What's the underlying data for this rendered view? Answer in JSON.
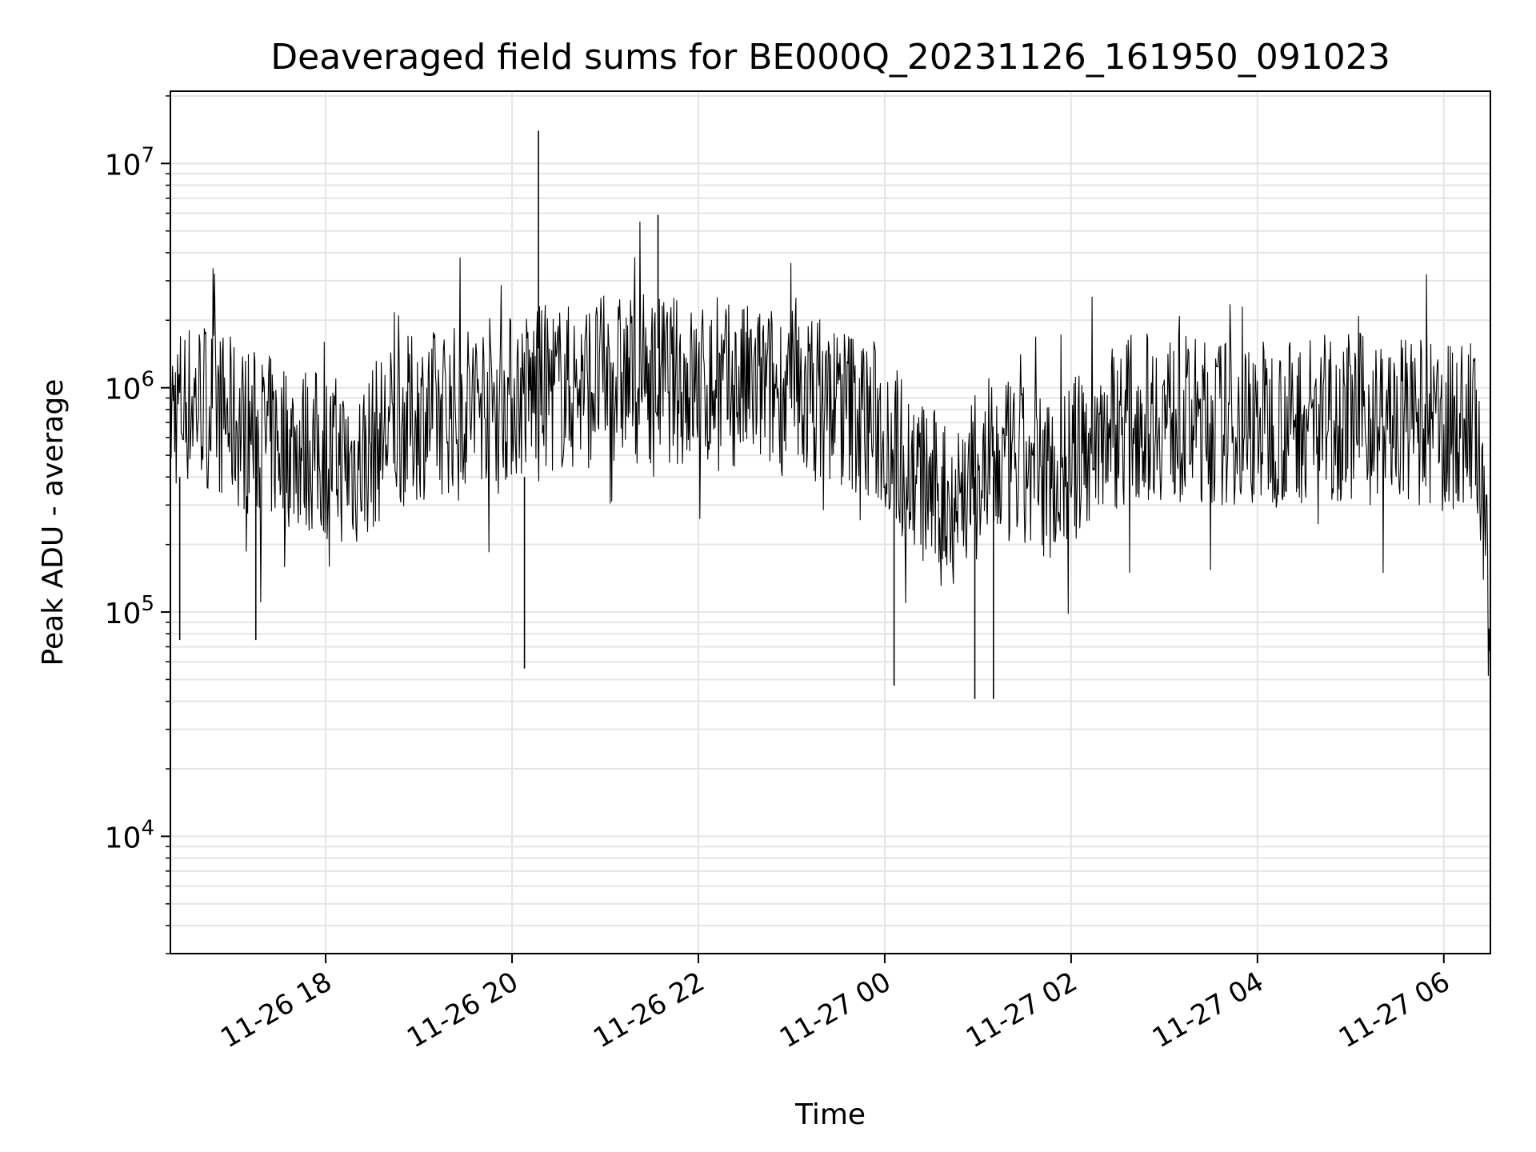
{
  "chart_data": {
    "type": "line",
    "title": "Deaveraged field sums for BE000Q_20231126_161950_091023",
    "xlabel": "Time",
    "ylabel": "Peak ADU - average",
    "xlim": [
      "2023-11-26 16:20",
      "2023-11-27 06:30"
    ],
    "ylim": [
      3000,
      21000000
    ],
    "yscale": "log",
    "grid": true,
    "line_color": "#000000",
    "grid_color": "#e5e5e5",
    "x_ticks": [
      {
        "value": "2023-11-26 18:00",
        "label": "11-26 18"
      },
      {
        "value": "2023-11-26 20:00",
        "label": "11-26 20"
      },
      {
        "value": "2023-11-26 22:00",
        "label": "11-26 22"
      },
      {
        "value": "2023-11-27 00:00",
        "label": "11-27 00"
      },
      {
        "value": "2023-11-27 02:00",
        "label": "11-27 02"
      },
      {
        "value": "2023-11-27 04:00",
        "label": "11-27 04"
      },
      {
        "value": "2023-11-27 06:00",
        "label": "11-27 06"
      }
    ],
    "y_ticks": [
      {
        "value": 10000,
        "base": "10",
        "exp": "4"
      },
      {
        "value": 100000,
        "base": "10",
        "exp": "5"
      },
      {
        "value": 1000000,
        "base": "10",
        "exp": "6"
      },
      {
        "value": 10000000,
        "base": "10",
        "exp": "7"
      }
    ],
    "series": [
      {
        "points": [
          [
            "2023-11-26 16:20",
            800000
          ],
          [
            "2023-11-26 16:40",
            900000
          ],
          [
            "2023-11-26 17:00",
            700000
          ],
          [
            "2023-11-26 17:20",
            600000
          ],
          [
            "2023-11-26 17:40",
            550000
          ],
          [
            "2023-11-26 18:00",
            500000
          ],
          [
            "2023-11-26 18:20",
            450000
          ],
          [
            "2023-11-26 18:40",
            650000
          ],
          [
            "2023-11-26 19:00",
            750000
          ],
          [
            "2023-11-26 19:20",
            800000
          ],
          [
            "2023-11-26 19:40",
            900000
          ],
          [
            "2023-11-26 20:00",
            900000
          ],
          [
            "2023-11-26 20:20",
            1000000
          ],
          [
            "2023-11-26 20:40",
            1000000
          ],
          [
            "2023-11-26 21:00",
            1100000
          ],
          [
            "2023-11-26 21:20",
            1100000
          ],
          [
            "2023-11-26 21:40",
            1100000
          ],
          [
            "2023-11-26 22:00",
            1000000
          ],
          [
            "2023-11-26 22:20",
            1000000
          ],
          [
            "2023-11-26 22:40",
            1000000
          ],
          [
            "2023-11-26 23:00",
            950000
          ],
          [
            "2023-11-26 23:20",
            900000
          ],
          [
            "2023-11-26 23:40",
            800000
          ],
          [
            "2023-11-27 00:00",
            650000
          ],
          [
            "2023-11-27 00:20",
            400000
          ],
          [
            "2023-11-27 00:40",
            300000
          ],
          [
            "2023-11-27 01:00",
            400000
          ],
          [
            "2023-11-27 01:20",
            450000
          ],
          [
            "2023-11-27 01:40",
            400000
          ],
          [
            "2023-11-27 02:00",
            450000
          ],
          [
            "2023-11-27 02:20",
            650000
          ],
          [
            "2023-11-27 02:40",
            750000
          ],
          [
            "2023-11-27 03:00",
            750000
          ],
          [
            "2023-11-27 03:20",
            700000
          ],
          [
            "2023-11-27 03:40",
            700000
          ],
          [
            "2023-11-27 04:00",
            700000
          ],
          [
            "2023-11-27 04:20",
            700000
          ],
          [
            "2023-11-27 04:40",
            750000
          ],
          [
            "2023-11-27 05:00",
            750000
          ],
          [
            "2023-11-27 05:20",
            700000
          ],
          [
            "2023-11-27 05:40",
            700000
          ],
          [
            "2023-11-27 06:00",
            650000
          ],
          [
            "2023-11-27 06:20",
            700000
          ],
          [
            "2023-11-27 06:30",
            90000
          ]
        ]
      }
    ],
    "annotations": [
      {
        "x": "2023-11-26 16:26",
        "y": 75000
      },
      {
        "x": "2023-11-26 17:15",
        "y": 75000
      },
      {
        "x": "2023-11-26 20:08",
        "y": 56000
      },
      {
        "x": "2023-11-26 20:17",
        "y": 14000000
      },
      {
        "x": "2023-11-26 21:34",
        "y": 5900000
      },
      {
        "x": "2023-11-27 00:06",
        "y": 47000
      },
      {
        "x": "2023-11-27 00:58",
        "y": 41000
      },
      {
        "x": "2023-11-27 01:10",
        "y": 41000
      }
    ]
  }
}
